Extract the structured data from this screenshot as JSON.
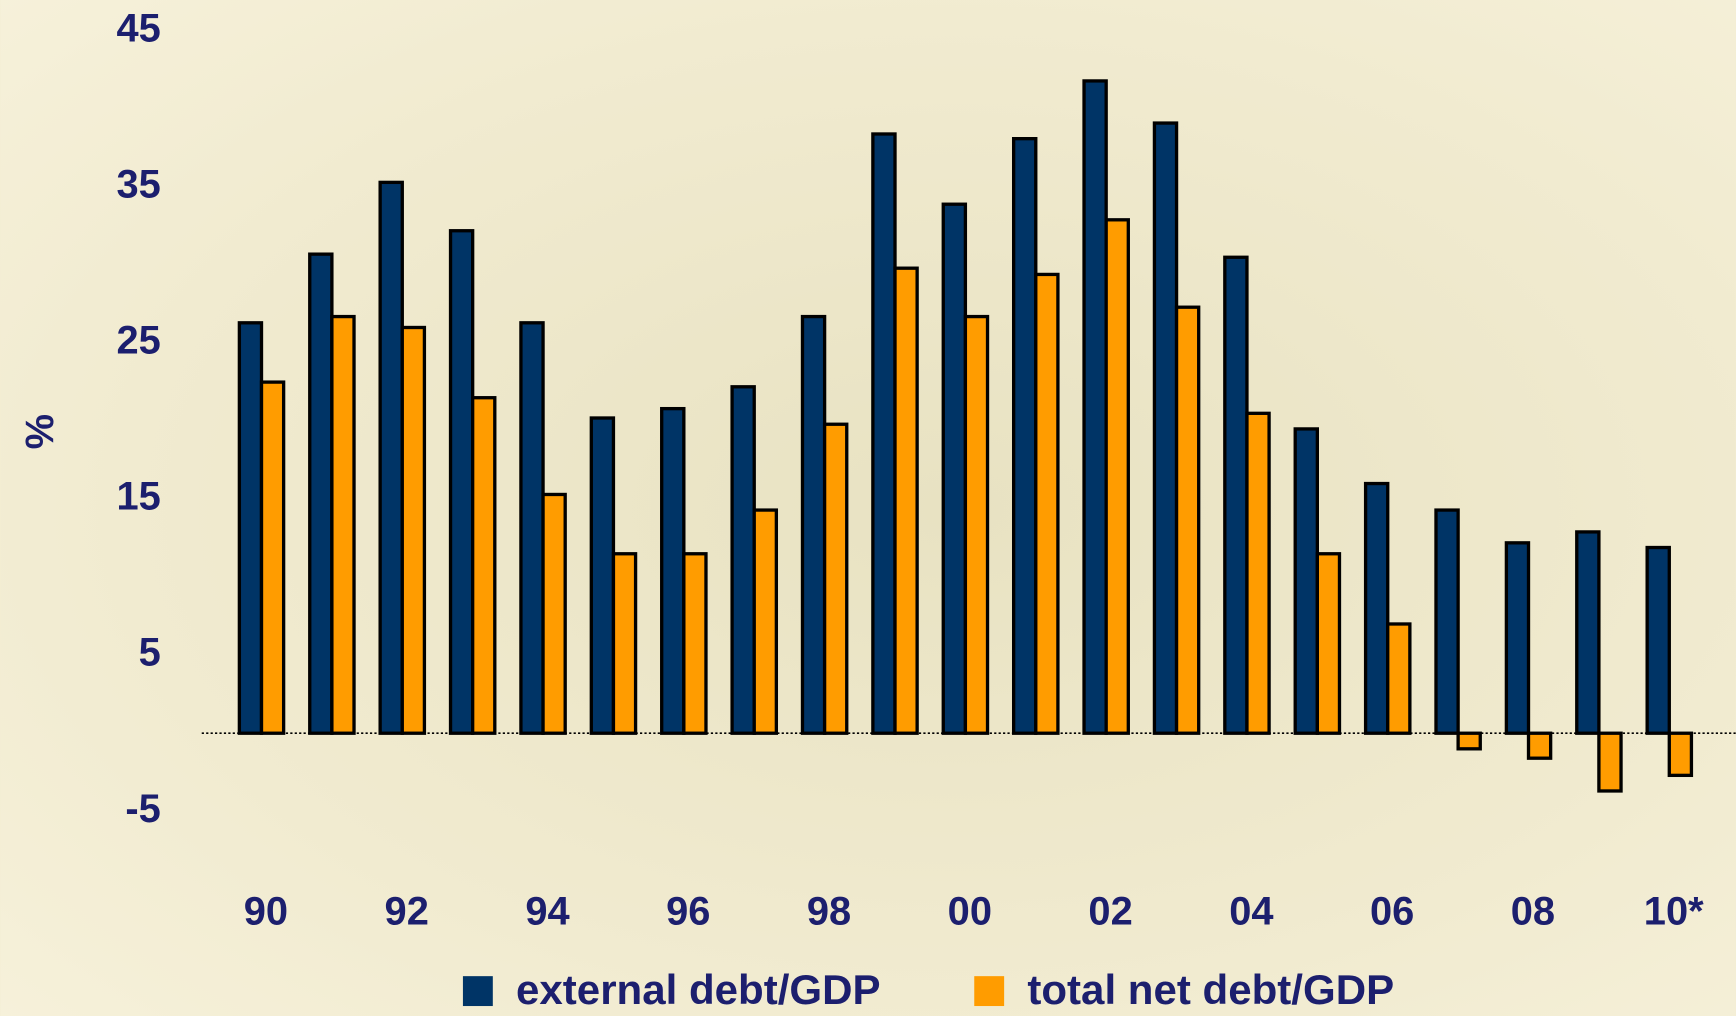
{
  "chart_data": {
    "type": "bar",
    "ylabel": "%",
    "ylim": [
      -5,
      45
    ],
    "yticks": [
      -5,
      5,
      15,
      25,
      35,
      45
    ],
    "categories": [
      "90",
      null,
      "92",
      null,
      "94",
      null,
      "96",
      null,
      "98",
      null,
      "00",
      null,
      "02",
      null,
      "04",
      null,
      "06",
      null,
      "08",
      null,
      "10*"
    ],
    "series": [
      {
        "name": "external debt/GDP",
        "color": "#003466",
        "values": [
          26.3,
          30.7,
          35.3,
          32.2,
          26.3,
          20.2,
          20.8,
          22.2,
          26.7,
          38.4,
          33.9,
          38.1,
          41.8,
          39.1,
          30.5,
          19.5,
          16.0,
          14.3,
          12.2,
          12.9,
          11.9
        ]
      },
      {
        "name": "total net debt/GDP",
        "color": "#ff9c00",
        "values": [
          22.5,
          26.7,
          26.0,
          21.5,
          15.3,
          11.5,
          11.5,
          14.3,
          19.8,
          29.8,
          26.7,
          29.4,
          32.9,
          27.3,
          20.5,
          11.5,
          7.0,
          -1.0,
          -1.6,
          -3.7,
          -2.7
        ]
      }
    ]
  }
}
